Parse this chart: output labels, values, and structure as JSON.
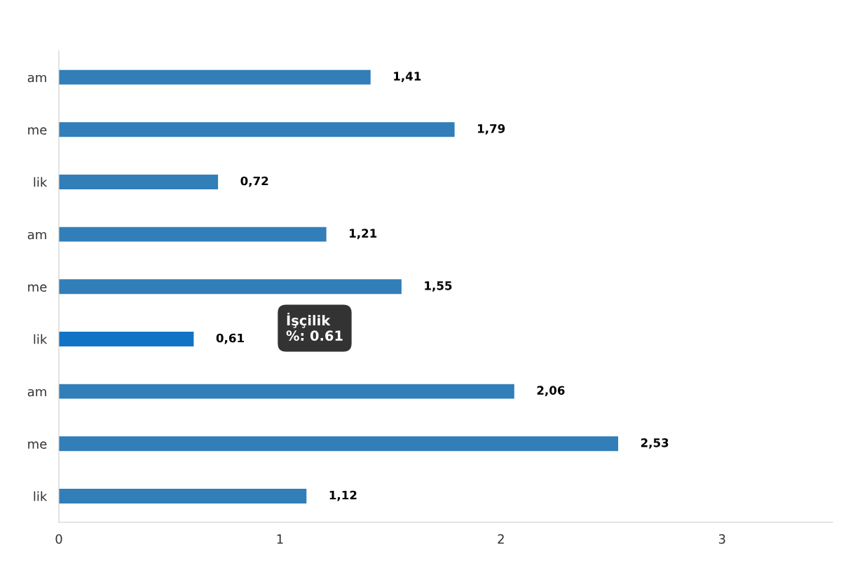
{
  "chart_data": {
    "type": "bar",
    "orientation": "horizontal",
    "categories": [
      "am",
      "me",
      "lik",
      "am",
      "me",
      "lik",
      "am",
      "me",
      "lik"
    ],
    "values": [
      1.41,
      1.79,
      0.72,
      1.21,
      1.55,
      0.61,
      2.06,
      2.53,
      1.12
    ],
    "value_labels": [
      "1,41",
      "1,79",
      "0,72",
      "1,21",
      "1,55",
      "0,61",
      "2,06",
      "2,53",
      "1,12"
    ],
    "colors": [
      "#317eb8",
      "#317eb8",
      "#317eb8",
      "#317eb8",
      "#317eb8",
      "#1273c5",
      "#317eb8",
      "#317eb8",
      "#317eb8"
    ],
    "xlim": [
      0,
      3.5
    ],
    "xticks": [
      0,
      1,
      2,
      3
    ],
    "grid": false,
    "legend": false,
    "annotations": [
      "İşçilik\n%: 0.61"
    ]
  }
}
